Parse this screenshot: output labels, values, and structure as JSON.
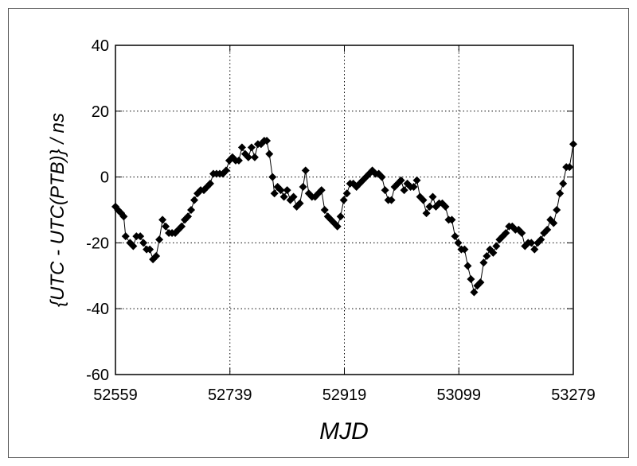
{
  "chart_data": {
    "type": "line",
    "x_label": "MJD",
    "y_label": "{UTC - UTC(PTB)} / ns",
    "xlim": [
      52559,
      53279
    ],
    "xticks": [
      52559,
      52739,
      52919,
      53099,
      53279
    ],
    "ylim": [
      -60,
      40
    ],
    "yticks": [
      -60,
      -40,
      -20,
      0,
      20,
      40
    ],
    "grid": true,
    "x": [
      52559,
      52563,
      52568,
      52572,
      52575,
      52582,
      52587,
      52592,
      52598,
      52603,
      52608,
      52613,
      52618,
      52623,
      52628,
      52633,
      52638,
      52643,
      52648,
      52653,
      52658,
      52663,
      52668,
      52673,
      52678,
      52683,
      52688,
      52693,
      52698,
      52703,
      52708,
      52713,
      52718,
      52723,
      52728,
      52733,
      52738,
      52743,
      52748,
      52753,
      52758,
      52763,
      52768,
      52773,
      52778,
      52783,
      52788,
      52793,
      52797,
      52801,
      52806,
      52809,
      52814,
      52819,
      52824,
      52829,
      52834,
      52839,
      52844,
      52849,
      52854,
      52858,
      52863,
      52868,
      52873,
      52878,
      52883,
      52888,
      52893,
      52898,
      52903,
      52908,
      52913,
      52918,
      52923,
      52928,
      52933,
      52938,
      52943,
      52948,
      52953,
      52958,
      52963,
      52968,
      52973,
      52978,
      52983,
      52988,
      52993,
      52998,
      53003,
      53008,
      53013,
      53018,
      53023,
      53028,
      53033,
      53038,
      53043,
      53048,
      53053,
      53058,
      53063,
      53068,
      53073,
      53078,
      53083,
      53088,
      53093,
      53098,
      53103,
      53108,
      53113,
      53118,
      53123,
      53128,
      53133,
      53138,
      53143,
      53148,
      53153,
      53158,
      53163,
      53168,
      53173,
      53178,
      53183,
      53188,
      53193,
      53198,
      53203,
      53208,
      53213,
      53218,
      53223,
      53228,
      53233,
      53238,
      53243,
      53248,
      53253,
      53258,
      53263,
      53268,
      53273,
      53279
    ],
    "series": [
      {
        "color": "#000000",
        "values": [
          -9,
          -10,
          -11,
          -12,
          -18,
          -20,
          -21,
          -18,
          -18,
          -20,
          -22,
          -22,
          -25,
          -24,
          -19,
          -13,
          -15,
          -17,
          -17,
          -17,
          -16,
          -15,
          -13,
          -12,
          -10,
          -7,
          -5,
          -4,
          -4,
          -3,
          -2,
          1,
          1,
          1,
          1,
          2,
          5,
          6,
          5,
          5,
          9,
          7,
          6,
          9,
          6,
          10,
          10,
          11,
          11,
          7,
          0,
          -5,
          -3,
          -4,
          -6,
          -4,
          -7,
          -6,
          -9,
          -8,
          -3,
          2,
          -5,
          -6,
          -6,
          -5,
          -4,
          -10,
          -12,
          -13,
          -14,
          -15,
          -12,
          -7,
          -5,
          -2,
          -2,
          -3,
          -2,
          -1,
          0,
          1,
          2,
          1,
          1,
          0,
          -4,
          -7,
          -7,
          -3,
          -2,
          -1,
          -4,
          -2,
          -3,
          -3,
          -1,
          -6,
          -7,
          -11,
          -9,
          -6,
          -9,
          -8,
          -8,
          -9,
          -13,
          -13,
          -18,
          -20,
          -22,
          -22,
          -27,
          -31,
          -35,
          -33,
          -32,
          -26,
          -24,
          -22,
          -23,
          -21,
          -19,
          -18,
          -17,
          -15,
          -15,
          -16,
          -16,
          -17,
          -21,
          -20,
          -20,
          -22,
          -20,
          -19,
          -17,
          -16,
          -13,
          -14,
          -10,
          -5,
          -2,
          3,
          3,
          10
        ]
      }
    ]
  }
}
